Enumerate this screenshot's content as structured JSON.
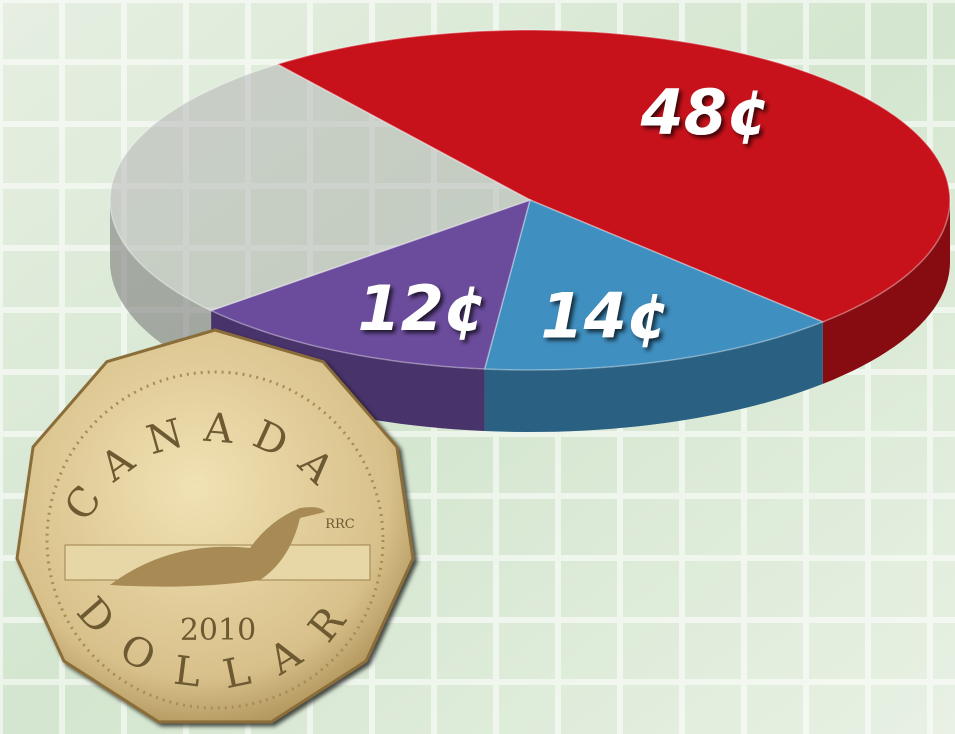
{
  "chart_data": {
    "type": "pie",
    "values": [
      48,
      14,
      12,
      26
    ],
    "value_labels": [
      "48¢",
      "14¢",
      "12¢",
      null
    ],
    "colors": [
      "#c8121b",
      "#3f8fc0",
      "#6b4c9c",
      "#b4b6b4"
    ]
  },
  "coin": {
    "country": "CANADA",
    "year": "2010",
    "denomination": "DOLLAR",
    "mint_mark": "RRC"
  }
}
